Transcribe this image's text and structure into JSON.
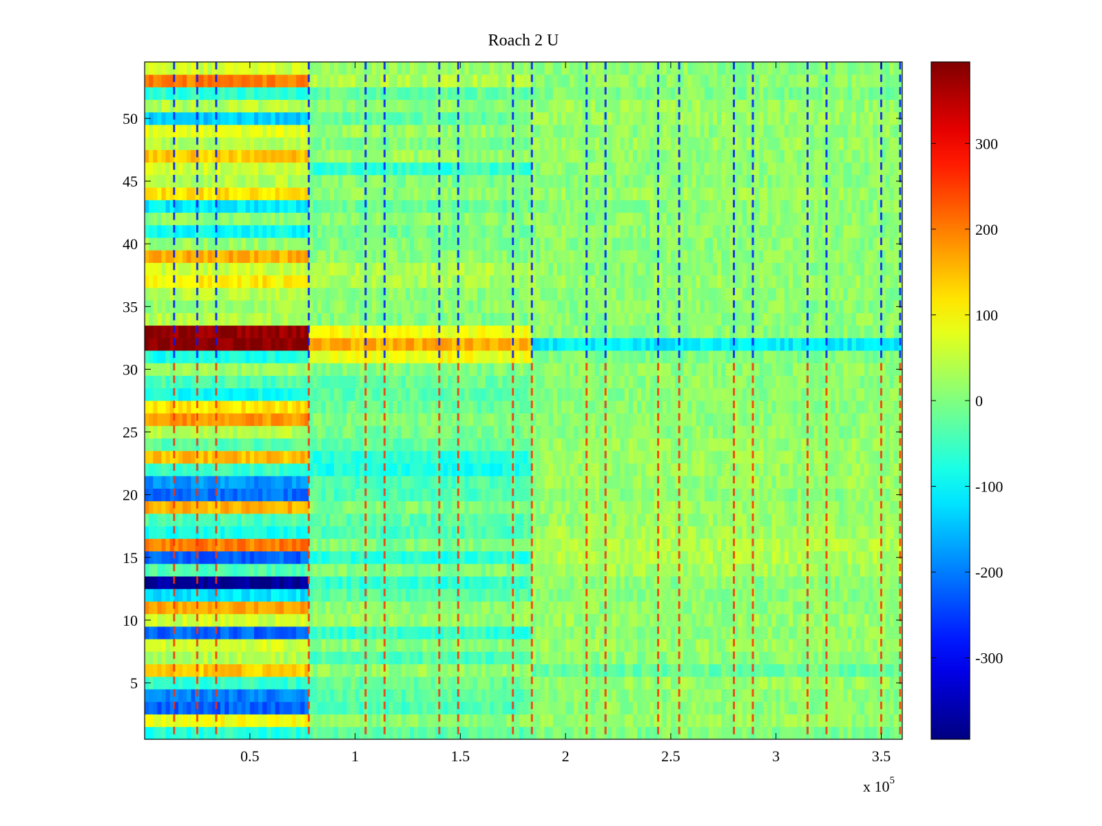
{
  "chart_data": {
    "type": "heatmap",
    "title": "Roach 2 U",
    "xlabel": "",
    "ylabel": "",
    "x_multiplier_label": "x 10",
    "x_multiplier_exponent": "5",
    "xlim": [
      0,
      3.6
    ],
    "ylim": [
      0.5,
      54.5
    ],
    "xticks": [
      0.5,
      1,
      1.5,
      2,
      2.5,
      3,
      3.5
    ],
    "xtick_labels": [
      "0.5",
      "1",
      "1.5",
      "2",
      "2.5",
      "3",
      "3.5"
    ],
    "yticks": [
      5,
      10,
      15,
      20,
      25,
      30,
      35,
      40,
      45,
      50
    ],
    "ytick_labels": [
      "5",
      "10",
      "15",
      "20",
      "25",
      "30",
      "35",
      "40",
      "45",
      "50"
    ],
    "rows": 54,
    "colormap": "jet",
    "clim": [
      -395,
      395
    ],
    "colorbar_ticks": [
      300,
      200,
      100,
      0,
      -100,
      -200,
      -300
    ],
    "colorbar_tick_labels": [
      "300",
      "200",
      "100",
      "0",
      "-100",
      "-200",
      "-300"
    ],
    "grid": false,
    "regions_x": [
      {
        "name": "early",
        "x0": 0,
        "x1": 0.78
      },
      {
        "name": "mid",
        "x0": 0.78,
        "x1": 1.84
      },
      {
        "name": "late",
        "x0": 1.84,
        "x1": 3.6
      }
    ],
    "row_levels": [
      {
        "row": 1,
        "early": -70,
        "mid": -30,
        "late": 0
      },
      {
        "row": 2,
        "early": 90,
        "mid": 10,
        "late": 20
      },
      {
        "row": 3,
        "early": -220,
        "mid": -40,
        "late": 10
      },
      {
        "row": 4,
        "early": -200,
        "mid": -30,
        "late": 10
      },
      {
        "row": 5,
        "early": -60,
        "mid": -20,
        "late": 20
      },
      {
        "row": 6,
        "early": 140,
        "mid": 20,
        "late": -20
      },
      {
        "row": 7,
        "early": 40,
        "mid": -40,
        "late": 10
      },
      {
        "row": 8,
        "early": 60,
        "mid": 10,
        "late": 20
      },
      {
        "row": 9,
        "early": -220,
        "mid": -60,
        "late": 10
      },
      {
        "row": 10,
        "early": 60,
        "mid": 20,
        "late": 20
      },
      {
        "row": 11,
        "early": 170,
        "mid": 10,
        "late": 10
      },
      {
        "row": 12,
        "early": -120,
        "mid": -30,
        "late": 10
      },
      {
        "row": 13,
        "early": -380,
        "mid": -60,
        "late": 10
      },
      {
        "row": 14,
        "early": -40,
        "mid": 0,
        "late": 30
      },
      {
        "row": 15,
        "early": -220,
        "mid": -70,
        "late": 40
      },
      {
        "row": 16,
        "early": 200,
        "mid": 0,
        "late": 40
      },
      {
        "row": 17,
        "early": -80,
        "mid": -40,
        "late": 30
      },
      {
        "row": 18,
        "early": -40,
        "mid": -30,
        "late": 20
      },
      {
        "row": 19,
        "early": 160,
        "mid": 0,
        "late": 20
      },
      {
        "row": 20,
        "early": -210,
        "mid": -40,
        "late": 10
      },
      {
        "row": 21,
        "early": -180,
        "mid": -40,
        "late": 20
      },
      {
        "row": 22,
        "early": -60,
        "mid": -80,
        "late": 20
      },
      {
        "row": 23,
        "early": 150,
        "mid": -70,
        "late": 20
      },
      {
        "row": 24,
        "early": -30,
        "mid": -20,
        "late": 20
      },
      {
        "row": 25,
        "early": 40,
        "mid": -10,
        "late": 10
      },
      {
        "row": 26,
        "early": 180,
        "mid": 0,
        "late": 10
      },
      {
        "row": 27,
        "early": 120,
        "mid": -20,
        "late": 10
      },
      {
        "row": 28,
        "early": -90,
        "mid": -30,
        "late": 10
      },
      {
        "row": 29,
        "early": -40,
        "mid": -20,
        "late": 10
      },
      {
        "row": 30,
        "early": 20,
        "mid": 0,
        "late": 10
      },
      {
        "row": 31,
        "early": -80,
        "mid": 90,
        "late": 0
      },
      {
        "row": 32,
        "early": 390,
        "mid": 160,
        "late": -110
      },
      {
        "row": 33,
        "early": 380,
        "mid": 90,
        "late": 10
      },
      {
        "row": 34,
        "early": 40,
        "mid": 0,
        "late": 10
      },
      {
        "row": 35,
        "early": 20,
        "mid": 10,
        "late": 10
      },
      {
        "row": 36,
        "early": 40,
        "mid": 10,
        "late": 10
      },
      {
        "row": 37,
        "early": 110,
        "mid": 30,
        "late": 20
      },
      {
        "row": 38,
        "early": 60,
        "mid": 40,
        "late": 10
      },
      {
        "row": 39,
        "early": 160,
        "mid": 10,
        "late": 10
      },
      {
        "row": 40,
        "early": 20,
        "mid": 0,
        "late": 10
      },
      {
        "row": 41,
        "early": -90,
        "mid": -10,
        "late": 10
      },
      {
        "row": 42,
        "early": 10,
        "mid": 10,
        "late": 10
      },
      {
        "row": 43,
        "early": -110,
        "mid": -20,
        "late": 10
      },
      {
        "row": 44,
        "early": 120,
        "mid": 10,
        "late": 20
      },
      {
        "row": 45,
        "early": 40,
        "mid": 0,
        "late": 10
      },
      {
        "row": 46,
        "early": 60,
        "mid": -60,
        "late": 10
      },
      {
        "row": 47,
        "early": 140,
        "mid": 20,
        "late": 10
      },
      {
        "row": 48,
        "early": 40,
        "mid": 0,
        "late": 20
      },
      {
        "row": 49,
        "early": 80,
        "mid": 20,
        "late": 10
      },
      {
        "row": 50,
        "early": -140,
        "mid": -20,
        "late": 20
      },
      {
        "row": 51,
        "early": 40,
        "mid": 10,
        "late": 20
      },
      {
        "row": 52,
        "early": -60,
        "mid": -20,
        "late": 0
      },
      {
        "row": 53,
        "early": 200,
        "mid": 40,
        "late": 10
      },
      {
        "row": 54,
        "early": 60,
        "mid": 20,
        "late": 10
      }
    ],
    "spike_columns_x": [
      0.14,
      0.25,
      0.34,
      0.78,
      1.05,
      1.14,
      1.4,
      1.49,
      1.75,
      1.84,
      2.1,
      2.19,
      2.44,
      2.54,
      2.8,
      2.89,
      3.15,
      3.24,
      3.5,
      3.59
    ]
  }
}
